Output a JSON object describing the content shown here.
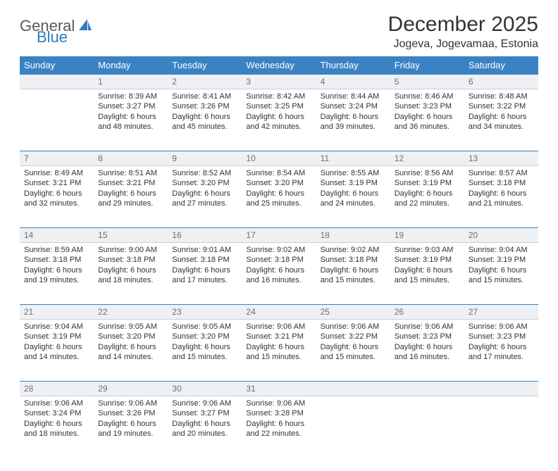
{
  "brand": {
    "name_part1": "General",
    "name_part2": "Blue"
  },
  "title": "December 2025",
  "location": "Jogeva, Jogevamaa, Estonia",
  "header_color": "#3b82c4",
  "daynum_bg": "#eef1f3",
  "days_of_week": [
    "Sunday",
    "Monday",
    "Tuesday",
    "Wednesday",
    "Thursday",
    "Friday",
    "Saturday"
  ],
  "weeks": [
    [
      null,
      {
        "n": "1",
        "sr": "8:39 AM",
        "ss": "3:27 PM",
        "dl": "6 hours and 48 minutes."
      },
      {
        "n": "2",
        "sr": "8:41 AM",
        "ss": "3:26 PM",
        "dl": "6 hours and 45 minutes."
      },
      {
        "n": "3",
        "sr": "8:42 AM",
        "ss": "3:25 PM",
        "dl": "6 hours and 42 minutes."
      },
      {
        "n": "4",
        "sr": "8:44 AM",
        "ss": "3:24 PM",
        "dl": "6 hours and 39 minutes."
      },
      {
        "n": "5",
        "sr": "8:46 AM",
        "ss": "3:23 PM",
        "dl": "6 hours and 36 minutes."
      },
      {
        "n": "6",
        "sr": "8:48 AM",
        "ss": "3:22 PM",
        "dl": "6 hours and 34 minutes."
      }
    ],
    [
      {
        "n": "7",
        "sr": "8:49 AM",
        "ss": "3:21 PM",
        "dl": "6 hours and 32 minutes."
      },
      {
        "n": "8",
        "sr": "8:51 AM",
        "ss": "3:21 PM",
        "dl": "6 hours and 29 minutes."
      },
      {
        "n": "9",
        "sr": "8:52 AM",
        "ss": "3:20 PM",
        "dl": "6 hours and 27 minutes."
      },
      {
        "n": "10",
        "sr": "8:54 AM",
        "ss": "3:20 PM",
        "dl": "6 hours and 25 minutes."
      },
      {
        "n": "11",
        "sr": "8:55 AM",
        "ss": "3:19 PM",
        "dl": "6 hours and 24 minutes."
      },
      {
        "n": "12",
        "sr": "8:56 AM",
        "ss": "3:19 PM",
        "dl": "6 hours and 22 minutes."
      },
      {
        "n": "13",
        "sr": "8:57 AM",
        "ss": "3:18 PM",
        "dl": "6 hours and 21 minutes."
      }
    ],
    [
      {
        "n": "14",
        "sr": "8:59 AM",
        "ss": "3:18 PM",
        "dl": "6 hours and 19 minutes."
      },
      {
        "n": "15",
        "sr": "9:00 AM",
        "ss": "3:18 PM",
        "dl": "6 hours and 18 minutes."
      },
      {
        "n": "16",
        "sr": "9:01 AM",
        "ss": "3:18 PM",
        "dl": "6 hours and 17 minutes."
      },
      {
        "n": "17",
        "sr": "9:02 AM",
        "ss": "3:18 PM",
        "dl": "6 hours and 16 minutes."
      },
      {
        "n": "18",
        "sr": "9:02 AM",
        "ss": "3:18 PM",
        "dl": "6 hours and 15 minutes."
      },
      {
        "n": "19",
        "sr": "9:03 AM",
        "ss": "3:19 PM",
        "dl": "6 hours and 15 minutes."
      },
      {
        "n": "20",
        "sr": "9:04 AM",
        "ss": "3:19 PM",
        "dl": "6 hours and 15 minutes."
      }
    ],
    [
      {
        "n": "21",
        "sr": "9:04 AM",
        "ss": "3:19 PM",
        "dl": "6 hours and 14 minutes."
      },
      {
        "n": "22",
        "sr": "9:05 AM",
        "ss": "3:20 PM",
        "dl": "6 hours and 14 minutes."
      },
      {
        "n": "23",
        "sr": "9:05 AM",
        "ss": "3:20 PM",
        "dl": "6 hours and 15 minutes."
      },
      {
        "n": "24",
        "sr": "9:06 AM",
        "ss": "3:21 PM",
        "dl": "6 hours and 15 minutes."
      },
      {
        "n": "25",
        "sr": "9:06 AM",
        "ss": "3:22 PM",
        "dl": "6 hours and 15 minutes."
      },
      {
        "n": "26",
        "sr": "9:06 AM",
        "ss": "3:23 PM",
        "dl": "6 hours and 16 minutes."
      },
      {
        "n": "27",
        "sr": "9:06 AM",
        "ss": "3:23 PM",
        "dl": "6 hours and 17 minutes."
      }
    ],
    [
      {
        "n": "28",
        "sr": "9:06 AM",
        "ss": "3:24 PM",
        "dl": "6 hours and 18 minutes."
      },
      {
        "n": "29",
        "sr": "9:06 AM",
        "ss": "3:26 PM",
        "dl": "6 hours and 19 minutes."
      },
      {
        "n": "30",
        "sr": "9:06 AM",
        "ss": "3:27 PM",
        "dl": "6 hours and 20 minutes."
      },
      {
        "n": "31",
        "sr": "9:06 AM",
        "ss": "3:28 PM",
        "dl": "6 hours and 22 minutes."
      },
      null,
      null,
      null
    ]
  ],
  "labels": {
    "sunrise": "Sunrise:",
    "sunset": "Sunset:",
    "daylight": "Daylight:"
  }
}
